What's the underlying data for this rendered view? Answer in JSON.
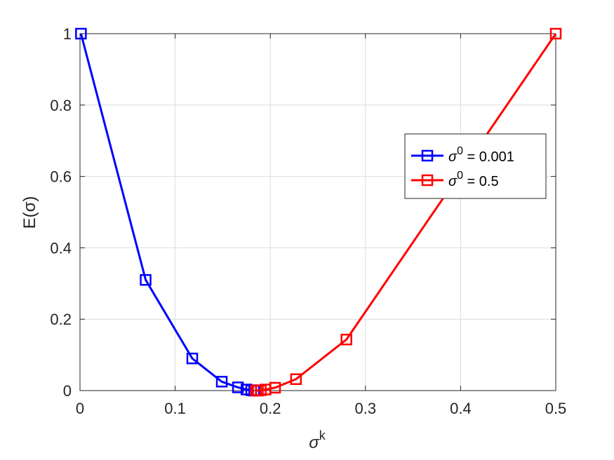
{
  "chart_data": {
    "type": "line",
    "title": "",
    "xlabel": {
      "base": "σ",
      "sup": "k"
    },
    "ylabel": "E(σ)",
    "xlim": [
      0,
      0.5
    ],
    "ylim": [
      0,
      1
    ],
    "xticks": [
      0,
      0.1,
      0.2,
      0.3,
      0.4,
      0.5
    ],
    "xtick_labels": [
      "0",
      "0.1",
      "0.2",
      "0.3",
      "0.4",
      "0.5"
    ],
    "yticks": [
      0,
      0.2,
      0.4,
      0.6,
      0.8,
      1
    ],
    "ytick_labels": [
      "0",
      "0.2",
      "0.4",
      "0.6",
      "0.8",
      "1"
    ],
    "grid": true,
    "legend_position": "right",
    "series": [
      {
        "name_base": "σ",
        "name_sup": "0",
        "name_rest": " = 0.001",
        "color": "#0000ff",
        "marker": "square",
        "x": [
          0.001,
          0.069,
          0.118,
          0.149,
          0.166,
          0.175,
          0.18,
          0.183
        ],
        "y": [
          1.0,
          0.31,
          0.09,
          0.025,
          0.009,
          0.003,
          0.001,
          0.0
        ]
      },
      {
        "name_base": "σ",
        "name_sup": "0",
        "name_rest": " = 0.5",
        "color": "#ff0000",
        "marker": "square",
        "x": [
          0.5,
          0.28,
          0.227,
          0.205,
          0.195,
          0.19,
          0.187,
          0.185
        ],
        "y": [
          1.0,
          0.143,
          0.032,
          0.008,
          0.003,
          0.001,
          0.0,
          0.0
        ]
      }
    ]
  }
}
